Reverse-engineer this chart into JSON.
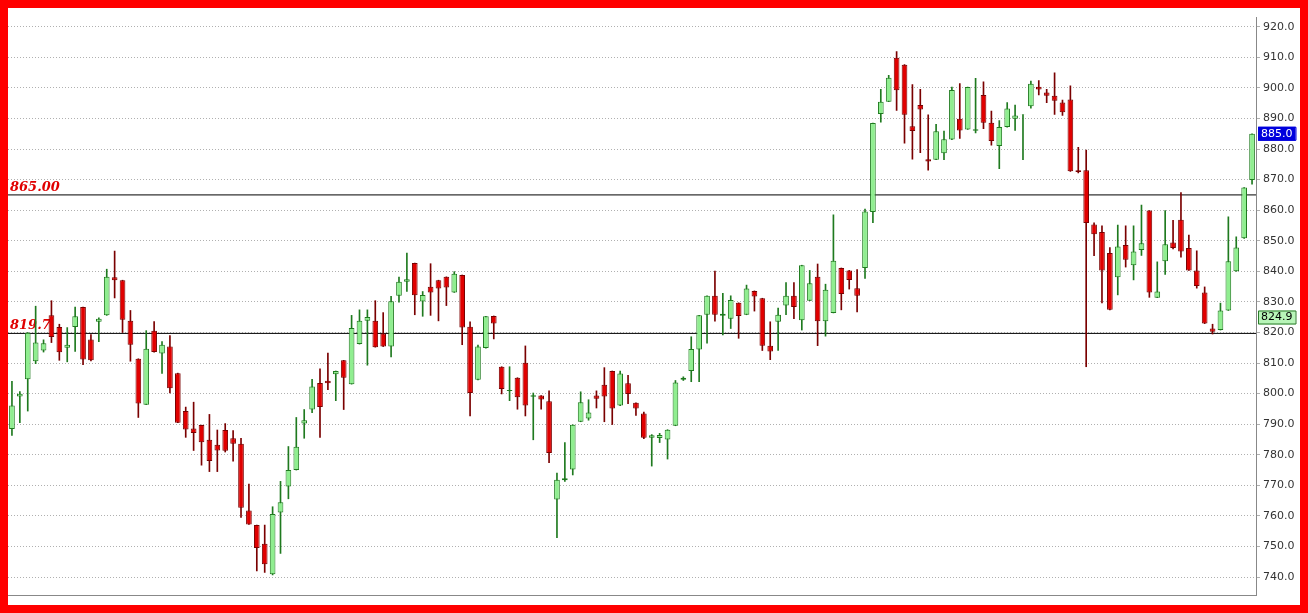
{
  "chart_data": {
    "type": "candlestick",
    "categories": [
      null,
      null,
      null,
      null,
      null,
      null,
      null,
      null,
      null,
      null,
      null,
      null,
      null,
      null,
      null,
      null,
      null,
      null,
      null,
      null,
      null,
      null,
      null,
      null,
      null,
      null,
      null,
      null,
      null,
      null,
      null,
      null,
      null,
      null,
      null,
      null,
      null,
      null,
      null,
      null,
      null,
      null,
      null,
      null,
      null,
      null,
      null,
      null,
      null,
      null,
      null,
      null,
      null,
      null,
      null,
      null,
      null,
      null,
      null,
      null,
      null,
      null,
      null,
      null,
      null,
      null,
      null,
      null,
      null,
      null,
      null,
      null,
      null,
      null,
      null,
      null,
      null,
      null,
      null,
      null,
      null,
      null,
      null,
      null,
      null,
      null,
      null,
      null,
      null,
      null,
      null,
      null,
      null,
      null,
      null,
      null,
      null,
      null,
      null,
      null,
      null,
      null,
      null,
      null,
      null,
      null,
      null,
      null,
      null,
      null,
      null,
      null,
      null,
      null,
      null,
      null,
      null,
      null,
      null,
      null,
      null,
      null,
      null,
      null,
      null,
      null,
      null,
      null,
      null,
      null,
      null,
      null,
      null,
      null,
      null,
      null,
      null,
      null,
      null,
      null,
      null,
      null,
      null,
      null,
      null,
      null,
      null,
      null,
      null,
      null,
      null,
      null,
      null,
      null,
      null,
      null,
      null,
      null
    ],
    "ohlc": [
      [
        788.4,
        804,
        786.3,
        796.1
      ],
      [
        799.1,
        800.7,
        790.5,
        800.0
      ],
      [
        804.7,
        820,
        794.3,
        819.9
      ],
      [
        810.6,
        828.6,
        809.8,
        816.7
      ],
      [
        814.1,
        817.6,
        813.6,
        816.5
      ],
      [
        825.6,
        830.4,
        816.7,
        818.5
      ],
      [
        821.8,
        822.7,
        810.9,
        813.5
      ],
      [
        815,
        821.6,
        810.4,
        816
      ],
      [
        821.8,
        828.3,
        813.8,
        825.3
      ],
      [
        828.3,
        828.3,
        809.5,
        811.2
      ],
      [
        817.7,
        819.3,
        810.7,
        810.9
      ],
      [
        823.5,
        824.8,
        817,
        824.5
      ],
      [
        825.6,
        840.7,
        825.6,
        838.2
      ],
      [
        838.1,
        846.6,
        831.3,
        837.1
      ],
      [
        837.1,
        837.1,
        820,
        824.2
      ],
      [
        823.8,
        827.2,
        810.6,
        816
      ],
      [
        811.4,
        811.4,
        792.2,
        796.8
      ],
      [
        796.4,
        820.6,
        796.4,
        814.7
      ],
      [
        820.6,
        823.6,
        813.6,
        813.6
      ],
      [
        813.1,
        817,
        806.6,
        816
      ],
      [
        815.4,
        819,
        800.2,
        801.8
      ],
      [
        806.7,
        806.7,
        790.5,
        790.5
      ],
      [
        794.3,
        795.6,
        785.7,
        788.3
      ],
      [
        788.6,
        797.2,
        781.4,
        787.1
      ],
      [
        789.7,
        789.7,
        776.6,
        784.1
      ],
      [
        784.9,
        793.2,
        774.5,
        778
      ],
      [
        783.3,
        788.1,
        774.5,
        781.4
      ],
      [
        788.1,
        790.2,
        780.9,
        781.3
      ],
      [
        785.4,
        787.9,
        777.9,
        783.6
      ],
      [
        783.6,
        785.4,
        759.5,
        762.7
      ],
      [
        761.8,
        770.4,
        757.2,
        757.2
      ],
      [
        757,
        757,
        742,
        749.5
      ],
      [
        750.9,
        757,
        741.5,
        744.2
      ],
      [
        740.9,
        763,
        740.7,
        760.6
      ],
      [
        761.1,
        771.3,
        747.7,
        764.5
      ],
      [
        769.6,
        782.7,
        765.6,
        775
      ],
      [
        775,
        792.2,
        775,
        782.6
      ],
      [
        790.2,
        794.8,
        785.4,
        791.3
      ],
      [
        794.8,
        804.7,
        793.8,
        802.3
      ],
      [
        803.5,
        808.1,
        785.7,
        795.6
      ],
      [
        804.2,
        813.3,
        801.3,
        803.4
      ],
      [
        806.3,
        807.4,
        797.7,
        807.4
      ],
      [
        810.9,
        810.9,
        794.8,
        805.2
      ],
      [
        803.1,
        825.6,
        803.1,
        821.5
      ],
      [
        816.2,
        827.4,
        816.2,
        823.8
      ],
      [
        823.8,
        827.4,
        809.3,
        825.1
      ],
      [
        823.8,
        830.4,
        815.2,
        815.2
      ],
      [
        819.7,
        826.5,
        815.4,
        815.4
      ],
      [
        815.4,
        831.8,
        812,
        830.2
      ],
      [
        832,
        838.1,
        829.9,
        836.6
      ],
      [
        836.6,
        846,
        833.4,
        837.4
      ],
      [
        842.7,
        842.7,
        825.8,
        832.2
      ],
      [
        830.1,
        833.4,
        825.3,
        832.3
      ],
      [
        835,
        842.5,
        825.6,
        833.1
      ],
      [
        837.1,
        837.1,
        823.8,
        834.4
      ],
      [
        838.2,
        838.2,
        828.8,
        834.7
      ],
      [
        833.1,
        839.9,
        833.1,
        839.2
      ],
      [
        838.8,
        838.8,
        816,
        821.6
      ],
      [
        821.9,
        823.5,
        792.7,
        800.2
      ],
      [
        804.5,
        815.9,
        804.5,
        815.4
      ],
      [
        814.9,
        825.3,
        814.9,
        825.3
      ],
      [
        825.4,
        825.4,
        817.9,
        822.9
      ],
      [
        808.8,
        808.8,
        799.9,
        801.5
      ],
      [
        800.9,
        808.8,
        797.7,
        801.2
      ],
      [
        805.2,
        805.2,
        794.9,
        798.8
      ],
      [
        810.1,
        815.6,
        792.7,
        796.1
      ],
      [
        799,
        800.2,
        784.9,
        799.5
      ],
      [
        799.4,
        799.4,
        794.9,
        798.1
      ],
      [
        797.5,
        800.9,
        777.4,
        780.6
      ],
      [
        765.4,
        774,
        752.9,
        771.8
      ],
      [
        771.7,
        784,
        771.3,
        772.3
      ],
      [
        775.2,
        789.8,
        773.4,
        789.8
      ],
      [
        790.8,
        800.6,
        790.8,
        797.2
      ],
      [
        791.9,
        798,
        791.3,
        793.8
      ],
      [
        799.4,
        800.9,
        795.3,
        798.3
      ],
      [
        802.9,
        808.5,
        790.8,
        799.1
      ],
      [
        807.4,
        807.4,
        789.9,
        795.1
      ],
      [
        796.1,
        807.4,
        796.1,
        806.6
      ],
      [
        803.4,
        806,
        796.7,
        799.9
      ],
      [
        797,
        797,
        792.9,
        795.1
      ],
      [
        793.5,
        794,
        785.3,
        785.6
      ],
      [
        785.6,
        786.6,
        776.3,
        786.4
      ],
      [
        785.5,
        787,
        784,
        786.5
      ],
      [
        785,
        788.2,
        778.6,
        788.2
      ],
      [
        789.5,
        804.3,
        789.5,
        803.6
      ],
      [
        804.5,
        805.5,
        804.3,
        805.2
      ],
      [
        807.4,
        818.6,
        803.9,
        814.6
      ],
      [
        814.4,
        825.6,
        803.9,
        825.6
      ],
      [
        825.8,
        832,
        816.5,
        832
      ],
      [
        832,
        840.1,
        823.7,
        825.8
      ],
      [
        825.5,
        832.8,
        819.2,
        826.1
      ],
      [
        824.5,
        832,
        821.3,
        830.6
      ],
      [
        829.7,
        829.7,
        818.1,
        825.4
      ],
      [
        825.8,
        835.5,
        825.8,
        834.4
      ],
      [
        833.6,
        833.6,
        827,
        831.8
      ],
      [
        831.2,
        831.2,
        814.1,
        815.7
      ],
      [
        815.7,
        823.5,
        811.1,
        813.8
      ],
      [
        823.5,
        828,
        814.1,
        825.8
      ],
      [
        828.8,
        836.3,
        825.8,
        832
      ],
      [
        832,
        836.3,
        824.5,
        828.3
      ],
      [
        824,
        842,
        820.8,
        842
      ],
      [
        830.4,
        840.3,
        830.4,
        836.1
      ],
      [
        838.2,
        842.4,
        815.7,
        823.7
      ],
      [
        823.7,
        835.8,
        818.8,
        834
      ],
      [
        826.4,
        858.5,
        826.4,
        843.5
      ],
      [
        841.1,
        841.1,
        827.4,
        832.6
      ],
      [
        840.3,
        840.3,
        834.2,
        837.2
      ],
      [
        834.5,
        840.6,
        826.7,
        832
      ],
      [
        841.1,
        860.4,
        837.7,
        859.6
      ],
      [
        859.4,
        888.5,
        855.9,
        888.5
      ],
      [
        891.5,
        899.5,
        888.8,
        895.5
      ],
      [
        895.5,
        904.1,
        895.5,
        903.3
      ],
      [
        909.9,
        911.9,
        892.6,
        899.2
      ],
      [
        907.6,
        907.6,
        881.9,
        891.2
      ],
      [
        887.5,
        901.1,
        876.7,
        885.9
      ],
      [
        894.4,
        899.5,
        878.8,
        892.9
      ],
      [
        876.7,
        891.2,
        873.1,
        875.9
      ],
      [
        876.5,
        888.1,
        876.5,
        885.8
      ],
      [
        878.6,
        885.9,
        876.5,
        883.2
      ],
      [
        883.1,
        900.3,
        883.1,
        899.3
      ],
      [
        889.9,
        901.4,
        883.5,
        886.1
      ],
      [
        886.4,
        900.3,
        886.4,
        900.3
      ],
      [
        886,
        903.1,
        885.3,
        886.5
      ],
      [
        897.7,
        902,
        886.7,
        888.6
      ],
      [
        888.6,
        892.4,
        881.3,
        882.6
      ],
      [
        881,
        889.3,
        873.6,
        887.2
      ],
      [
        887.2,
        895.2,
        887.2,
        893.3
      ],
      [
        889.9,
        894.4,
        886.1,
        891
      ],
      [
        891.2,
        891.3,
        876.5,
        891.3
      ],
      [
        894,
        902.2,
        893.4,
        901.4
      ],
      [
        900.4,
        902.4,
        897.7,
        899.5
      ],
      [
        898.5,
        899.5,
        895.2,
        897.4
      ],
      [
        897.4,
        904.9,
        891.3,
        895.8
      ],
      [
        895.2,
        896,
        891,
        892
      ],
      [
        896.2,
        900.7,
        872.7,
        872.7
      ],
      [
        873.1,
        880.6,
        872.2,
        872.5
      ],
      [
        873.1,
        879.7,
        808.8,
        855.8
      ],
      [
        855.3,
        855.9,
        845.1,
        852.1
      ],
      [
        852.9,
        854.9,
        829.7,
        840.3
      ],
      [
        846,
        847.8,
        827.4,
        827.4
      ],
      [
        838.1,
        855.1,
        832.3,
        848.1
      ],
      [
        848.6,
        854.9,
        841.4,
        843.8
      ],
      [
        842,
        854.9,
        837.2,
        846.5
      ],
      [
        847,
        861.7,
        845.2,
        849.2
      ],
      [
        859.9,
        859.9,
        831.5,
        833.1
      ],
      [
        831.4,
        843.1,
        831.4,
        833.4
      ],
      [
        843.3,
        859.9,
        839,
        848.9
      ],
      [
        849.4,
        856.7,
        847.3,
        847.6
      ],
      [
        856.9,
        865.8,
        844.6,
        846.5
      ],
      [
        847.6,
        851.9,
        840.3,
        840.3
      ],
      [
        840.3,
        846.7,
        834.5,
        835.2
      ],
      [
        833.1,
        834.9,
        822.9,
        822.9
      ],
      [
        821.3,
        822.7,
        819.5,
        820.2
      ],
      [
        820.8,
        829.6,
        820.8,
        827.2
      ],
      [
        827.2,
        857.8,
        827.2,
        843.3
      ],
      [
        840,
        851.3,
        840,
        847.8
      ],
      [
        850.8,
        867.4,
        850.8,
        867.4
      ],
      [
        869.9,
        885,
        868.5,
        885
      ]
    ],
    "ylim": [
      734,
      923
    ],
    "yticks": [
      {
        "value": 740,
        "label": "740.0"
      },
      {
        "value": 750,
        "label": "750.0"
      },
      {
        "value": 760,
        "label": "760.0"
      },
      {
        "value": 770,
        "label": "770.0"
      },
      {
        "value": 780,
        "label": "780.0"
      },
      {
        "value": 790,
        "label": "790.0"
      },
      {
        "value": 800,
        "label": "800.0"
      },
      {
        "value": 810,
        "label": "810.0"
      },
      {
        "value": 820,
        "label": "820.0"
      },
      {
        "value": 830,
        "label": "830.0"
      },
      {
        "value": 840,
        "label": "840.0"
      },
      {
        "value": 850,
        "label": "850.0"
      },
      {
        "value": 860,
        "label": "860.0"
      },
      {
        "value": 870,
        "label": "870.0"
      },
      {
        "value": 880,
        "label": "880.0"
      },
      {
        "value": 890,
        "label": "890.0"
      },
      {
        "value": 900,
        "label": "900.0"
      },
      {
        "value": 910,
        "label": "910.0"
      },
      {
        "value": 920,
        "label": "920.0"
      }
    ],
    "ref_lines": [
      {
        "axis": "y",
        "value": 865,
        "label": "865.00",
        "color": "#000000"
      },
      {
        "axis": "y",
        "value": 819.7,
        "label": "819.7",
        "color": "#000000"
      }
    ],
    "annotations": [
      {
        "text": "885.0",
        "y": 885
      },
      {
        "text": "824.9",
        "y": 824.9
      }
    ],
    "grid": "y",
    "tick_labels": "y"
  }
}
